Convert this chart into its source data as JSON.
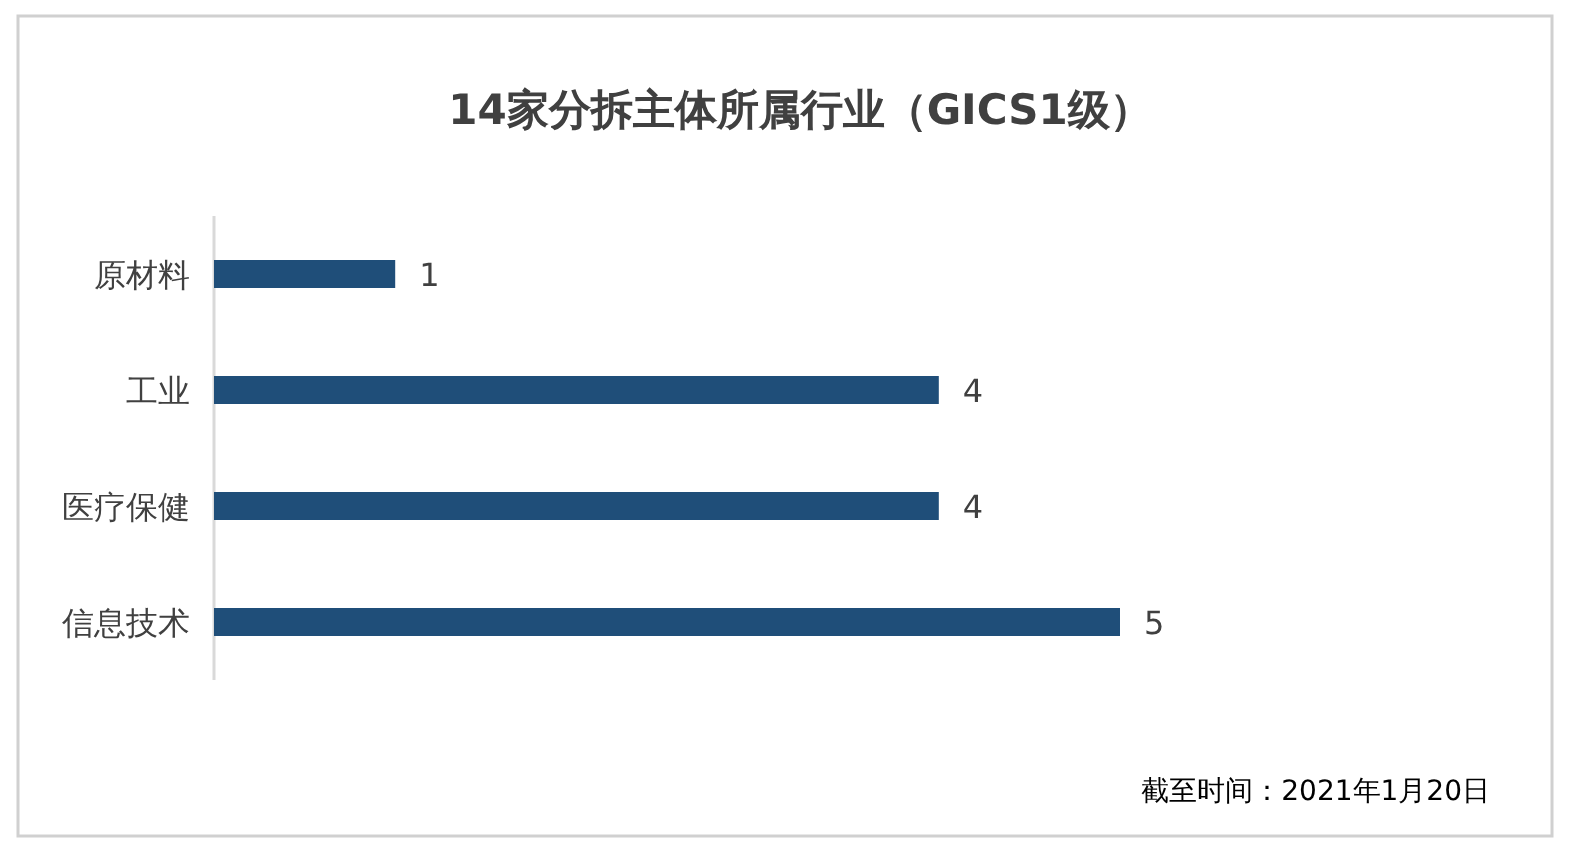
{
  "chart_data": {
    "type": "bar",
    "orientation": "horizontal",
    "title": "14家分拆主体所属行业（GICS1级）",
    "categories": [
      "原材料",
      "工业",
      "医疗保健",
      "信息技术"
    ],
    "values": [
      1,
      4,
      4,
      5
    ],
    "color": "#1f4e79",
    "data_labels": true,
    "annotations": [
      "截至时间：2021年1月20日"
    ]
  }
}
